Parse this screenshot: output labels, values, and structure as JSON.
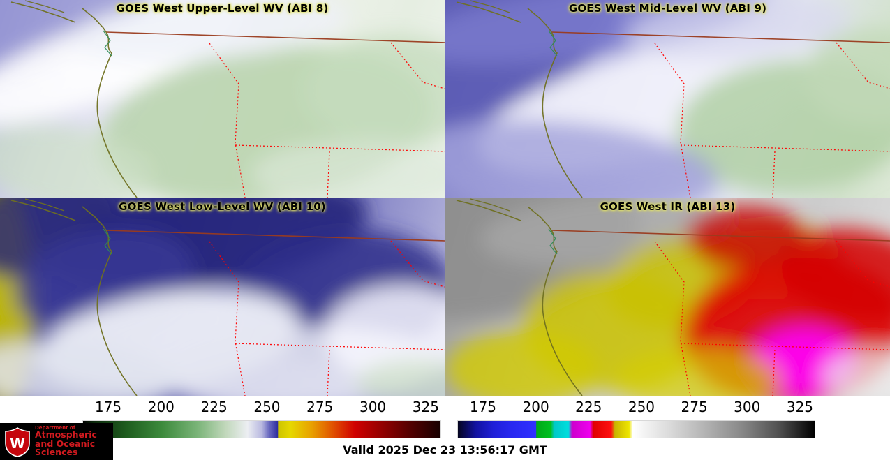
{
  "panels": [
    {
      "id": "upper_wv",
      "title": "GOES West Upper-Level WV (ABI 8)"
    },
    {
      "id": "mid_wv",
      "title": "GOES West Mid-Level WV (ABI 9)"
    },
    {
      "id": "low_wv",
      "title": "GOES West Low-Level WV (ABI 10)"
    },
    {
      "id": "ir",
      "title": "GOES West IR (ABI 13)"
    }
  ],
  "map_overlay": {
    "state_border_color": "#ff0000",
    "coastline_color": "#6f7020",
    "international_border_color": "#9a3b1e"
  },
  "colorbars": {
    "ticks": [
      "175",
      "200",
      "225",
      "250",
      "275",
      "300",
      "325"
    ],
    "wv_stops": [
      {
        "p": 0,
        "c": "#000000"
      },
      {
        "p": 3,
        "c": "#0c2a0c"
      },
      {
        "p": 12,
        "c": "#1e5c1e"
      },
      {
        "p": 22,
        "c": "#3c8a3c"
      },
      {
        "p": 32,
        "c": "#7ab478"
      },
      {
        "p": 40,
        "c": "#c2d8bc"
      },
      {
        "p": 46,
        "c": "#eceef2"
      },
      {
        "p": 50,
        "c": "#b8b8e0"
      },
      {
        "p": 52,
        "c": "#6a6ac0"
      },
      {
        "p": 54.5,
        "c": "#2e2e9e"
      },
      {
        "p": 54.6,
        "c": "#cdc400"
      },
      {
        "p": 58,
        "c": "#e6d800"
      },
      {
        "p": 64,
        "c": "#e8a000"
      },
      {
        "p": 70,
        "c": "#e05000"
      },
      {
        "p": 76,
        "c": "#d00000"
      },
      {
        "p": 84,
        "c": "#900000"
      },
      {
        "p": 92,
        "c": "#500000"
      },
      {
        "p": 100,
        "c": "#180000"
      }
    ],
    "ir_stops": [
      {
        "p": 0,
        "c": "#05051e"
      },
      {
        "p": 5,
        "c": "#1212a0"
      },
      {
        "p": 10,
        "c": "#2020d8"
      },
      {
        "p": 15,
        "c": "#2828f0"
      },
      {
        "p": 21.9,
        "c": "#3030ff"
      },
      {
        "p": 22,
        "c": "#00a818"
      },
      {
        "p": 26,
        "c": "#00c020"
      },
      {
        "p": 27,
        "c": "#00c8c8"
      },
      {
        "p": 31,
        "c": "#00dede"
      },
      {
        "p": 32,
        "c": "#cc00cc"
      },
      {
        "p": 37,
        "c": "#ee00ee"
      },
      {
        "p": 38,
        "c": "#e00000"
      },
      {
        "p": 43,
        "c": "#ff1010"
      },
      {
        "p": 44,
        "c": "#c8b400"
      },
      {
        "p": 48,
        "c": "#eee600"
      },
      {
        "p": 49,
        "c": "#ffffff"
      },
      {
        "p": 60,
        "c": "#d8d8d8"
      },
      {
        "p": 70,
        "c": "#b0b0b0"
      },
      {
        "p": 80,
        "c": "#868686"
      },
      {
        "p": 90,
        "c": "#505050"
      },
      {
        "p": 100,
        "c": "#000000"
      }
    ]
  },
  "logo": {
    "letter": "W",
    "line1": "Department of",
    "line2": "Atmospheric",
    "line3": "and Oceanic Sciences",
    "accent": "#d11a1f"
  },
  "footer": {
    "valid_label": "Valid 2025 Dec 23 13:56:17 GMT"
  }
}
